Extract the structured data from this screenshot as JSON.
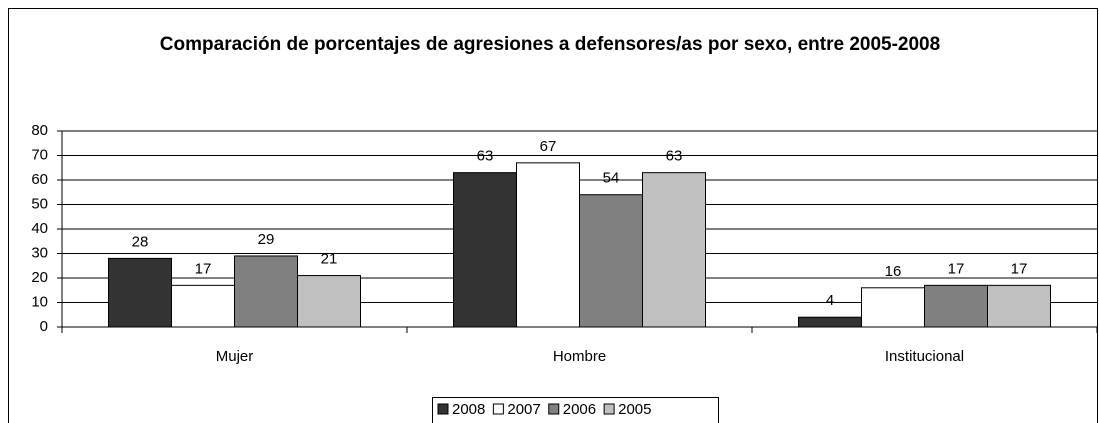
{
  "chart_data": {
    "type": "bar",
    "title": "Comparación de porcentajes de agresiones a defensores/as por sexo, entre 2005-2008",
    "categories": [
      "Mujer",
      "Hombre",
      "Institucional"
    ],
    "series": [
      {
        "name": "2008",
        "color": "#333333",
        "values": [
          28,
          63,
          4
        ]
      },
      {
        "name": "2007",
        "color": "#ffffff",
        "values": [
          17,
          67,
          16
        ]
      },
      {
        "name": "2006",
        "color": "#808080",
        "values": [
          29,
          54,
          17
        ]
      },
      {
        "name": "2005",
        "color": "#c0c0c0",
        "values": [
          21,
          63,
          17
        ]
      }
    ],
    "ylim": [
      0,
      80
    ],
    "yticks": [
      0,
      10,
      20,
      30,
      40,
      50,
      60,
      70,
      80
    ],
    "grid": true,
    "legend": "bottom"
  }
}
